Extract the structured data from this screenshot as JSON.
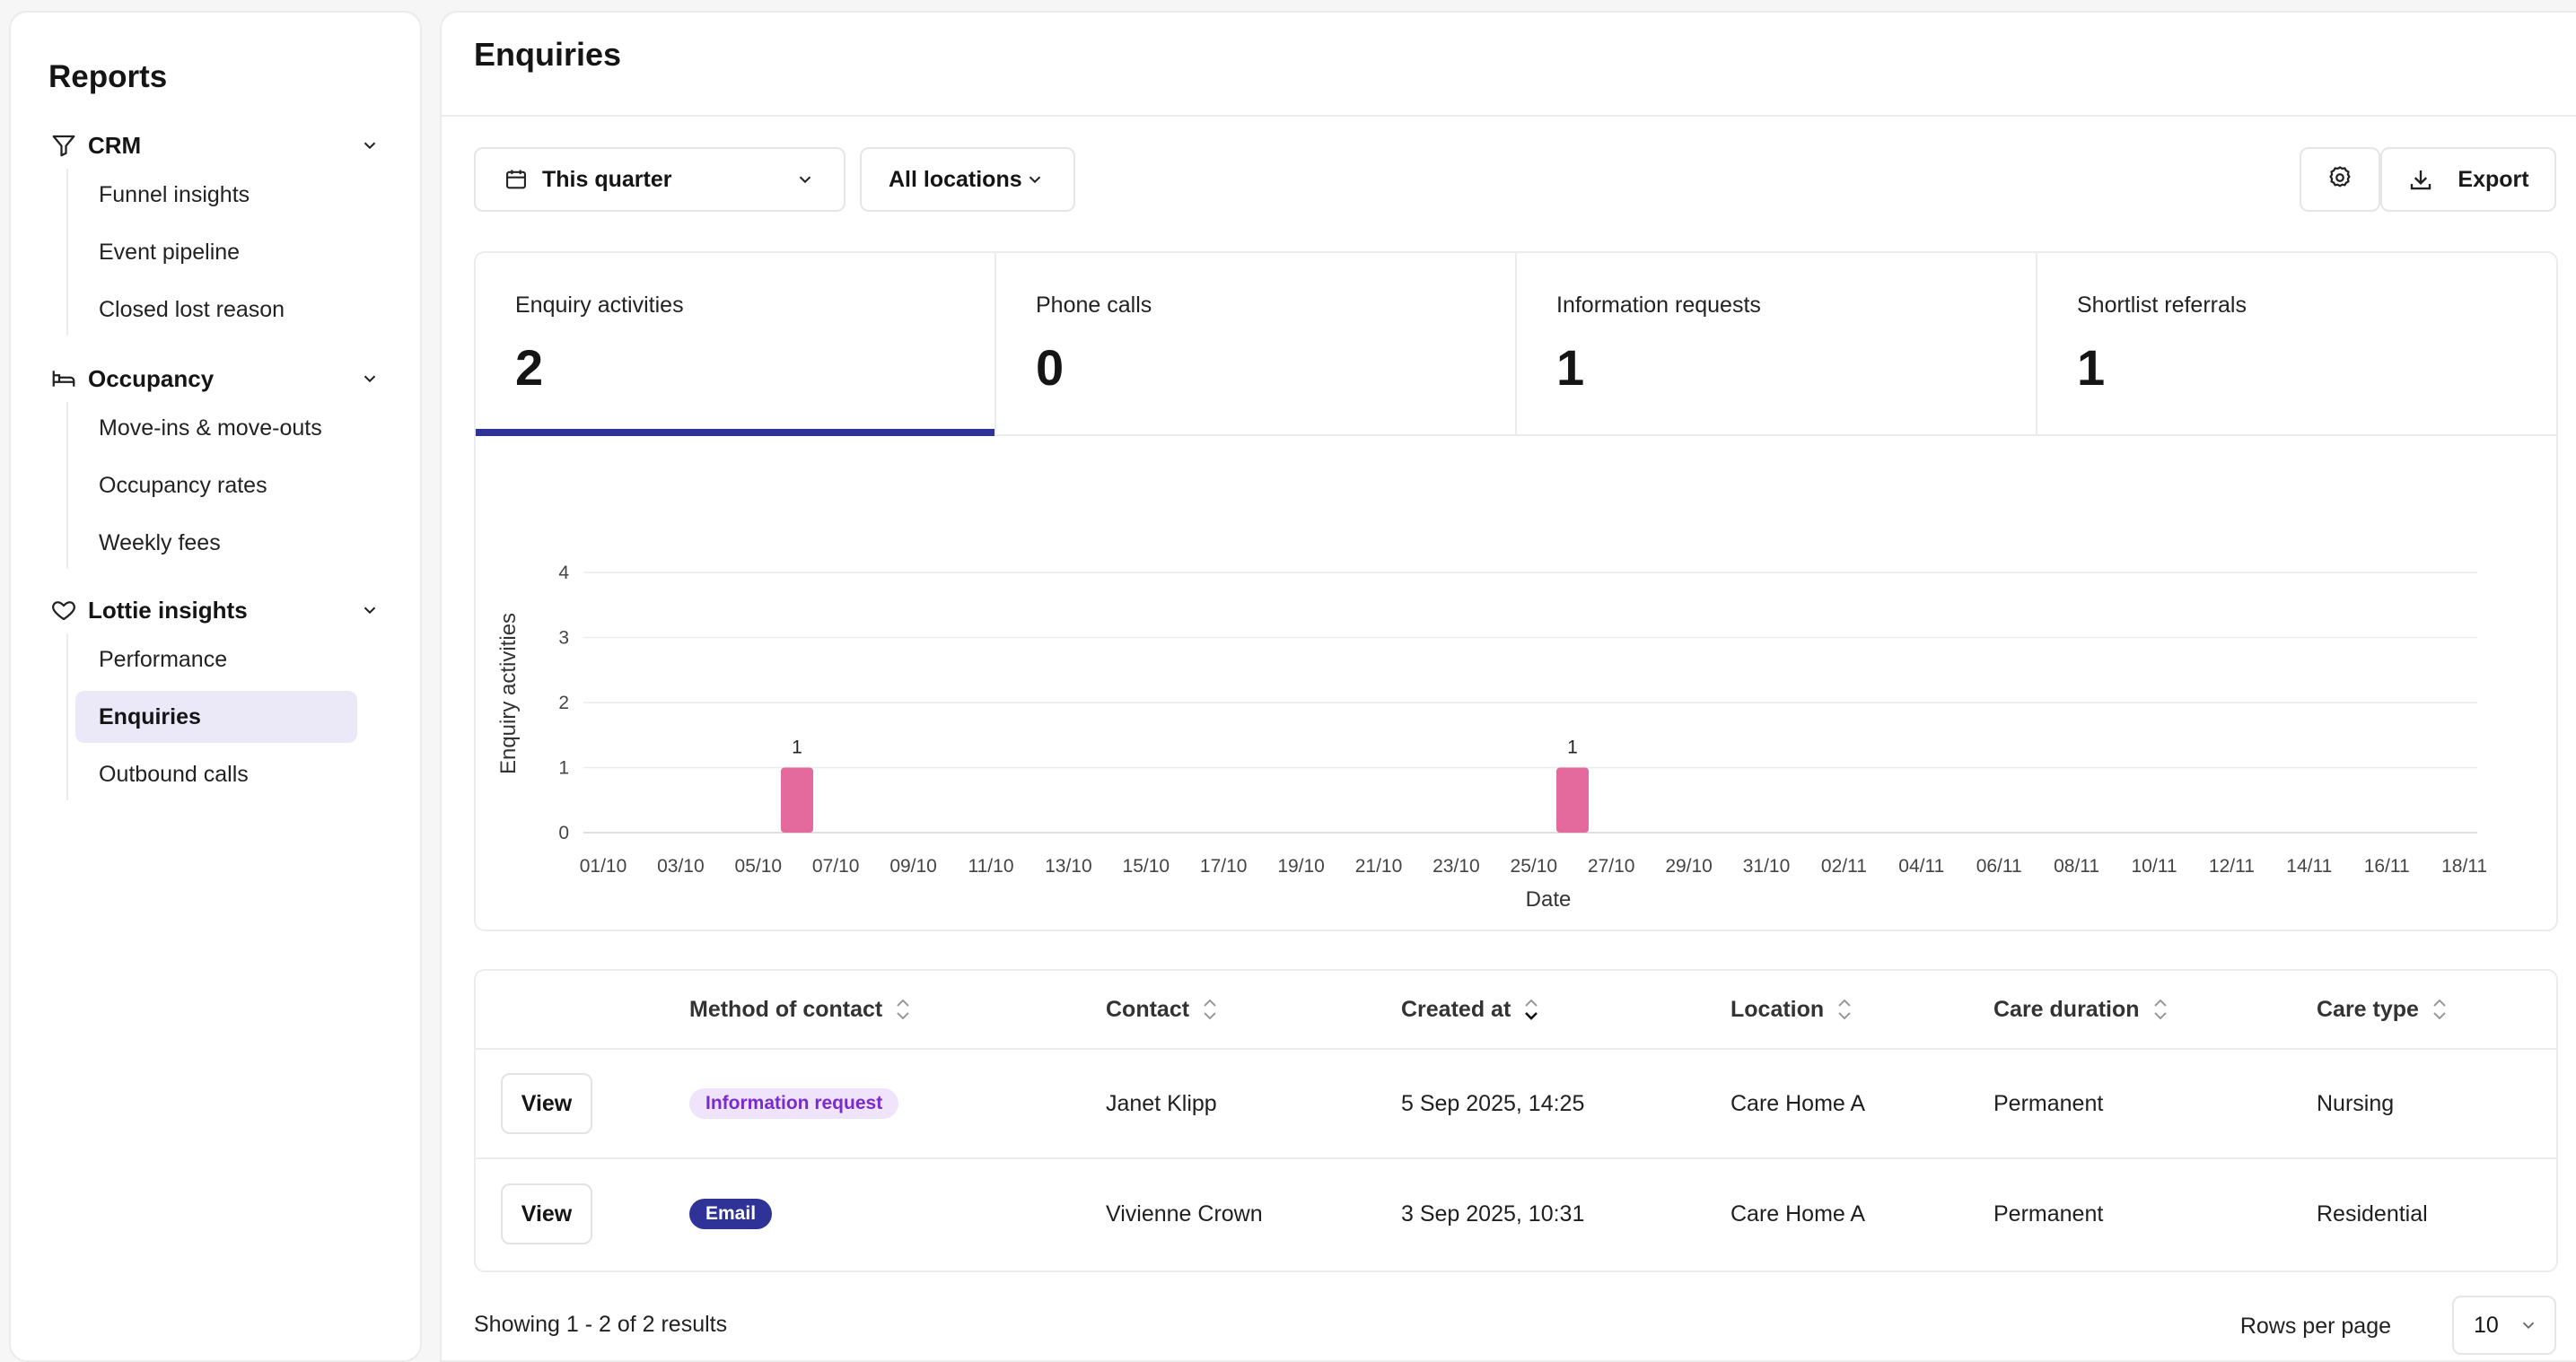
{
  "sidebar": {
    "title": "Reports",
    "groups": [
      {
        "label": "CRM",
        "icon": "funnel-icon",
        "items": [
          "Funnel insights",
          "Event pipeline",
          "Closed lost reason"
        ]
      },
      {
        "label": "Occupancy",
        "icon": "bed-icon",
        "items": [
          "Move-ins & move-outs",
          "Occupancy rates",
          "Weekly fees"
        ]
      },
      {
        "label": "Lottie insights",
        "icon": "heart-icon",
        "items": [
          "Performance",
          "Enquiries",
          "Outbound calls"
        ]
      }
    ],
    "active_item": "Enquiries"
  },
  "header": {
    "title": "Enquiries"
  },
  "filters": {
    "date_range": "This quarter",
    "location": "All locations",
    "export_label": "Export"
  },
  "stats": [
    {
      "label": "Enquiry activities",
      "value": "2",
      "active": true
    },
    {
      "label": "Phone calls",
      "value": "0",
      "active": false
    },
    {
      "label": "Information requests",
      "value": "1",
      "active": false
    },
    {
      "label": "Shortlist referrals",
      "value": "1",
      "active": false
    }
  ],
  "colors": {
    "accent": "#2f3297",
    "bar": "#e46a9d"
  },
  "chart_data": {
    "type": "bar",
    "xlabel": "Date",
    "ylabel": "Enquiry activities",
    "ylim": [
      0,
      4
    ],
    "yticks": [
      0,
      1,
      2,
      3,
      4
    ],
    "grid": true,
    "categories": [
      "01/10",
      "02/10",
      "03/10",
      "04/10",
      "05/10",
      "06/10",
      "07/10",
      "08/10",
      "09/10",
      "10/10",
      "11/10",
      "12/10",
      "13/10",
      "14/10",
      "15/10",
      "16/10",
      "17/10",
      "18/10",
      "19/10",
      "20/10",
      "21/10",
      "22/10",
      "23/10",
      "24/10",
      "25/10",
      "26/10",
      "27/10",
      "28/10",
      "29/10",
      "30/10",
      "31/10",
      "01/11",
      "02/11",
      "03/11",
      "04/11",
      "05/11",
      "06/11",
      "07/11",
      "08/11",
      "09/11",
      "10/11",
      "11/11",
      "12/11",
      "13/11",
      "14/11",
      "15/11",
      "16/11",
      "17/11",
      "18/11",
      "19/11"
    ],
    "tick_labels": [
      "01/10",
      "03/10",
      "05/10",
      "07/10",
      "09/10",
      "11/10",
      "13/10",
      "15/10",
      "17/10",
      "19/10",
      "21/10",
      "23/10",
      "25/10",
      "27/10",
      "29/10",
      "31/10",
      "02/11",
      "04/11",
      "06/11",
      "08/11",
      "10/11",
      "12/11",
      "14/11",
      "16/11",
      "18/11"
    ],
    "values": [
      0,
      0,
      0,
      0,
      0,
      1,
      0,
      0,
      0,
      0,
      0,
      0,
      0,
      0,
      0,
      0,
      0,
      0,
      0,
      0,
      0,
      0,
      0,
      0,
      0,
      1,
      0,
      0,
      0,
      0,
      0,
      0,
      0,
      0,
      0,
      0,
      0,
      0,
      0,
      0,
      0,
      0,
      0,
      0,
      0,
      0,
      0,
      0,
      0,
      0
    ],
    "data_labels": true
  },
  "table": {
    "columns": [
      "Method of contact",
      "Contact",
      "Created at",
      "Location",
      "Care duration",
      "Care type"
    ],
    "view_label": "View",
    "rows": [
      {
        "method": "Information request",
        "method_style": "info",
        "contact": "Janet Klipp",
        "created_at": "5 Sep 2025, 14:25",
        "location": "Care Home A",
        "duration": "Permanent",
        "care_type": "Nursing"
      },
      {
        "method": "Email",
        "method_style": "email",
        "contact": "Vivienne Crown",
        "created_at": "3 Sep 2025, 10:31",
        "location": "Care Home A",
        "duration": "Permanent",
        "care_type": "Residential"
      }
    ]
  },
  "footer": {
    "results": "Showing 1 - 2 of 2 results",
    "rows_per_page_label": "Rows per page",
    "rows_per_page": "10"
  }
}
